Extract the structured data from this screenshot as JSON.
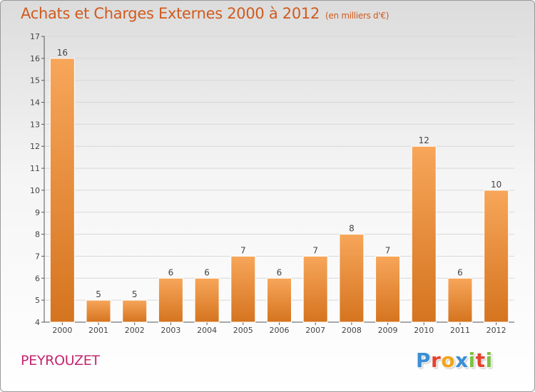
{
  "title": "Achats et Charges Externes 2000 à 2012",
  "subtitle": "(en milliers d'€)",
  "commune": "PEYROUZET",
  "logo": {
    "text": "Proxiti",
    "letters": [
      {
        "char": "P",
        "color": "#3a8fd6"
      },
      {
        "char": "r",
        "color": "#e2442f"
      },
      {
        "char": "o",
        "color": "#f2a51a"
      },
      {
        "char": "x",
        "color": "#3a8fd6"
      },
      {
        "char": "i",
        "color": "#7cc242"
      },
      {
        "char": "t",
        "color": "#e2442f"
      },
      {
        "char": "i",
        "color": "#7cc242"
      }
    ]
  },
  "colors": {
    "bar_top": "#f7a65a",
    "bar_bottom": "#d5741f",
    "title": "#d05a1e",
    "commune": "#c4266f",
    "grid": "#d8d8d8"
  },
  "chart_data": {
    "type": "bar",
    "title": "Achats et Charges Externes 2000 à 2012",
    "subtitle": "(en milliers d'€)",
    "categories": [
      "2000",
      "2001",
      "2002",
      "2003",
      "2004",
      "2005",
      "2006",
      "2007",
      "2008",
      "2009",
      "2010",
      "2011",
      "2012"
    ],
    "values": [
      16,
      5,
      5,
      6,
      6,
      7,
      6,
      7,
      8,
      7,
      12,
      6,
      10
    ],
    "ylim": [
      4,
      17
    ],
    "yticks": [
      4,
      5,
      6,
      7,
      8,
      9,
      10,
      11,
      12,
      13,
      14,
      15,
      16,
      17
    ],
    "grid": true,
    "data_labels": true
  }
}
